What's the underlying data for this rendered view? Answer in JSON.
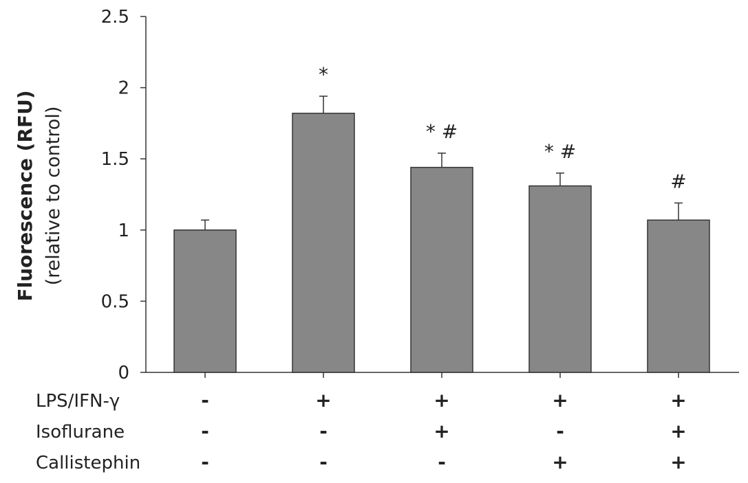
{
  "chart_data": {
    "type": "bar",
    "title": "",
    "ylabel": "Fluorescence (RFU)",
    "ylabel_sub": "(relative to control)",
    "ylim": [
      0,
      2.5
    ],
    "yticks": [
      0,
      0.5,
      1,
      1.5,
      2,
      2.5
    ],
    "ytick_labels": [
      "0",
      "0.5",
      "1",
      "1.5",
      "2",
      "2.5"
    ],
    "bar_color": "#878787",
    "values": [
      1.0,
      1.82,
      1.44,
      1.31,
      1.07
    ],
    "errors": [
      0.07,
      0.12,
      0.1,
      0.09,
      0.12
    ],
    "annotations": [
      "",
      "*",
      "* #",
      "* #",
      "#"
    ],
    "conditions": [
      {
        "label": "LPS/IFN-γ",
        "signs": [
          "-",
          "+",
          "+",
          "+",
          "+"
        ]
      },
      {
        "label": "Isoflurane",
        "signs": [
          "-",
          "-",
          "+",
          "-",
          "+"
        ]
      },
      {
        "label": "Callistephin",
        "signs": [
          "-",
          "-",
          "-",
          "+",
          "+"
        ]
      }
    ]
  }
}
